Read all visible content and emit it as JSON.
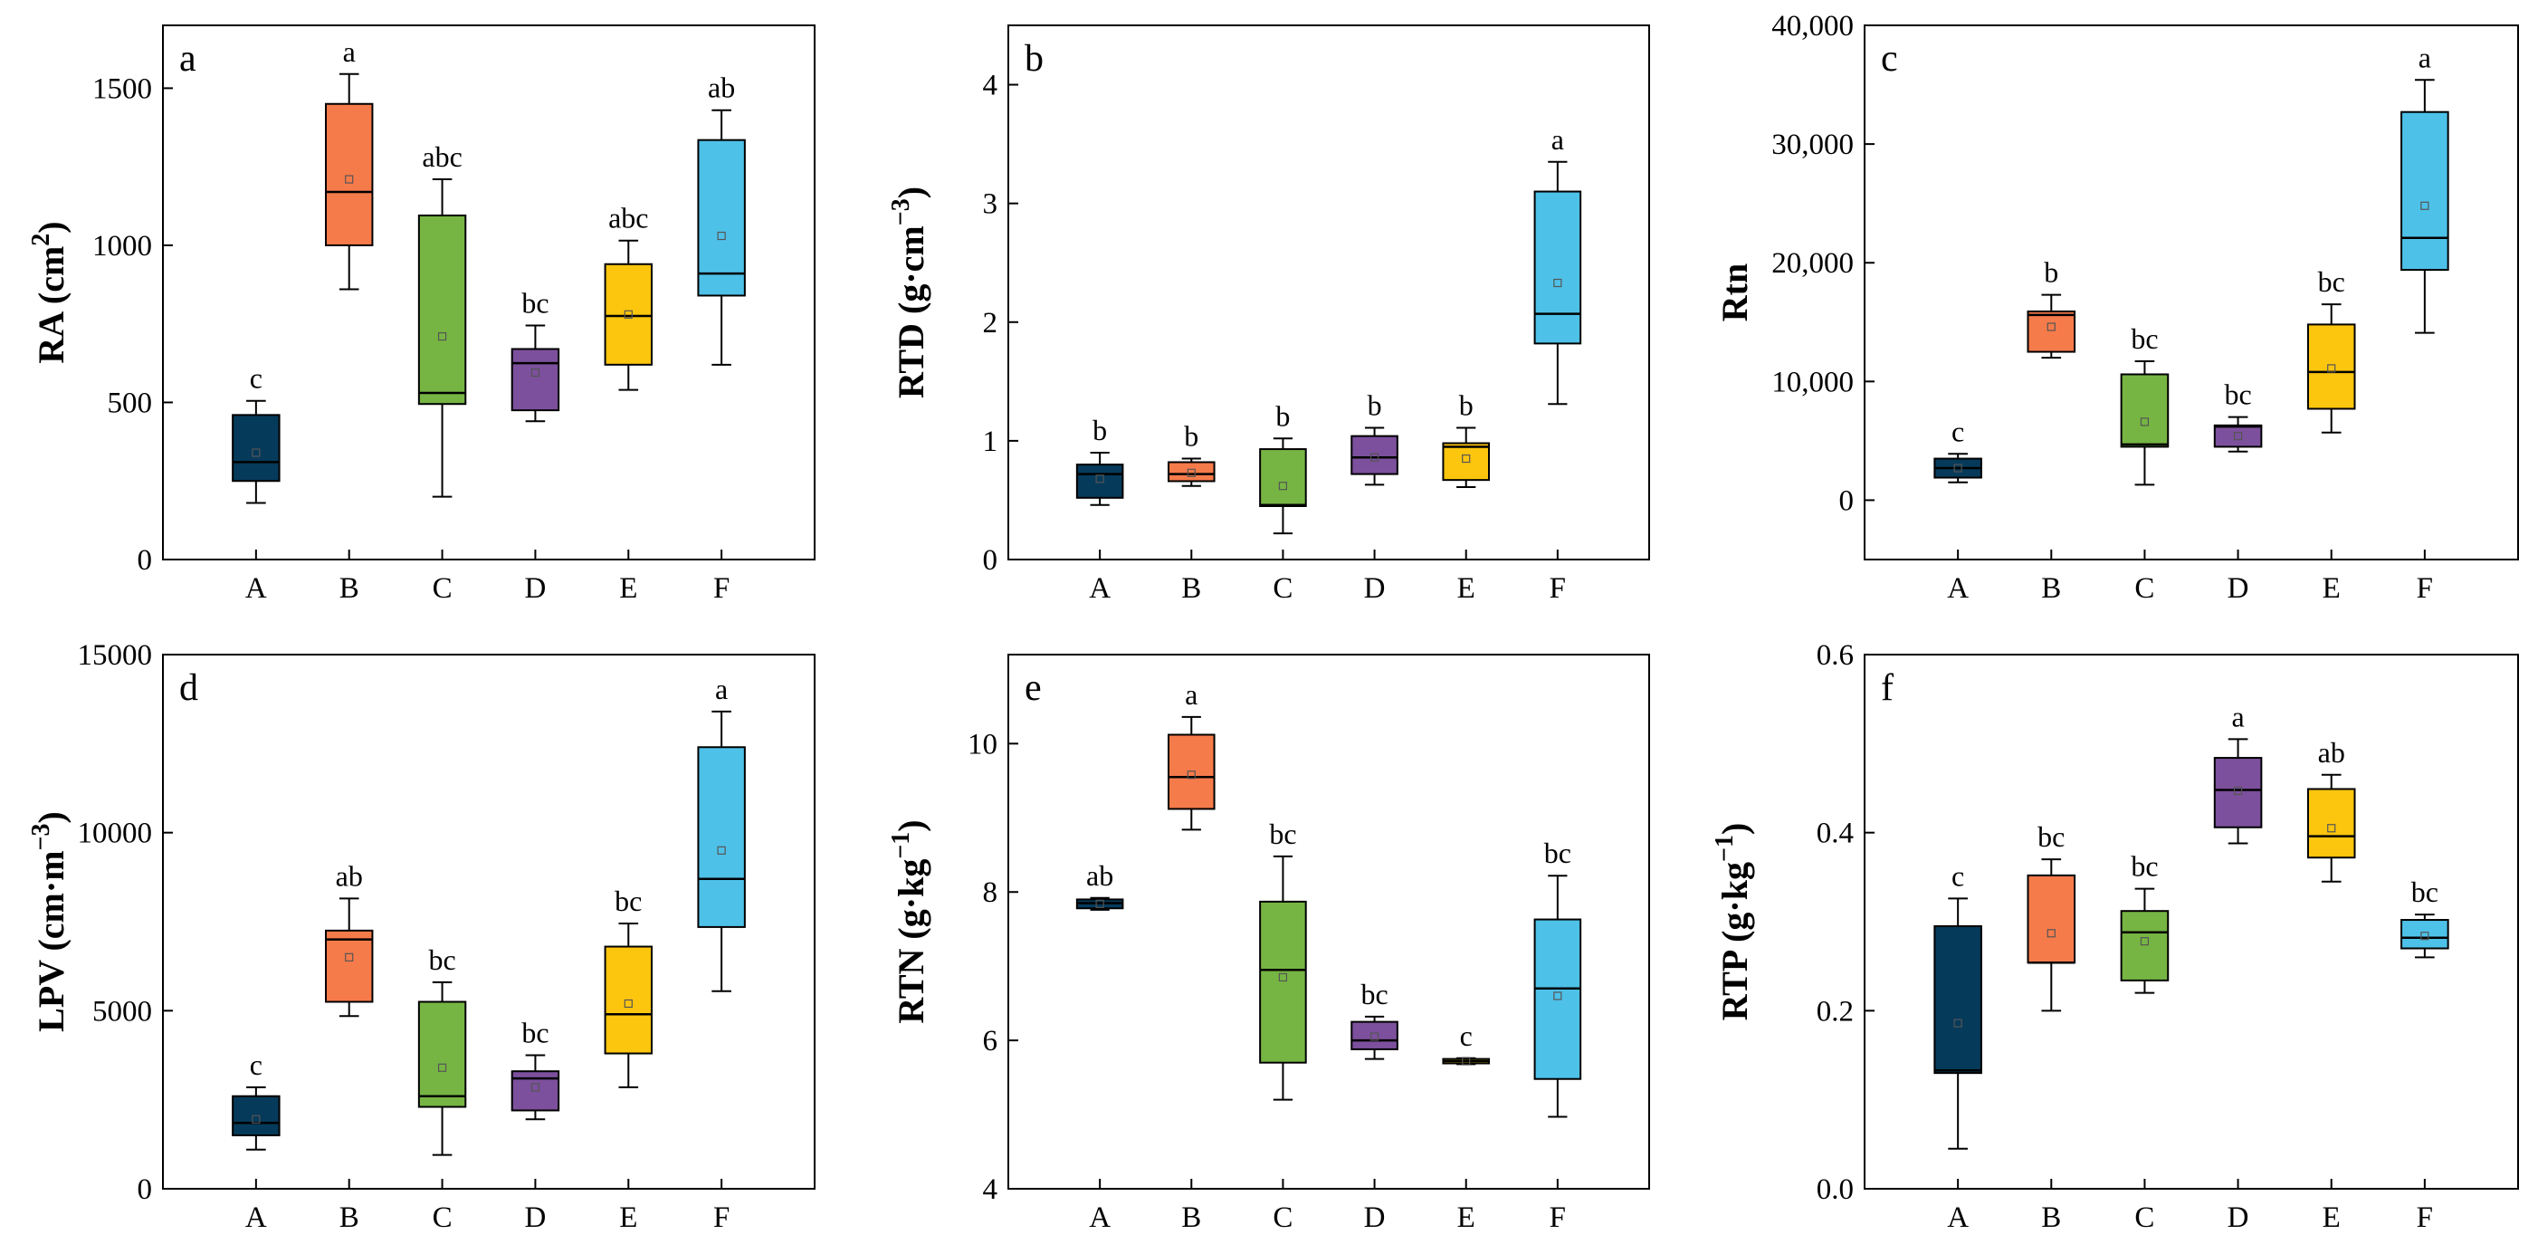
{
  "figure": {
    "colors": {
      "A": "#063a5a",
      "B": "#f67b4b",
      "C": "#76b543",
      "D": "#7c509c",
      "E": "#fcc50e",
      "F": "#4ec1e8"
    }
  },
  "chart_data": [
    {
      "type": "box",
      "panel": "a",
      "ylabel": {
        "main": "RA (cm",
        "sup": "2",
        "tail": ")"
      },
      "ylim": [
        0,
        1700
      ],
      "yticks": [
        0,
        500,
        1000,
        1500
      ],
      "ytick_labels": [
        "0",
        "500",
        "1000",
        "1500"
      ],
      "categories": [
        "A",
        "B",
        "C",
        "D",
        "E",
        "F"
      ],
      "boxes": [
        {
          "min": 180,
          "q1": 250,
          "median": 310,
          "q3": 460,
          "max": 505,
          "mean": 340,
          "label": "c"
        },
        {
          "min": 860,
          "q1": 1000,
          "median": 1170,
          "q3": 1450,
          "max": 1545,
          "mean": 1210,
          "label": "a"
        },
        {
          "min": 200,
          "q1": 495,
          "median": 530,
          "q3": 1095,
          "max": 1210,
          "mean": 710,
          "label": "abc"
        },
        {
          "min": 440,
          "q1": 475,
          "median": 625,
          "q3": 670,
          "max": 745,
          "mean": 595,
          "label": "bc"
        },
        {
          "min": 540,
          "q1": 620,
          "median": 775,
          "q3": 940,
          "max": 1015,
          "mean": 780,
          "label": "abc"
        },
        {
          "min": 620,
          "q1": 840,
          "median": 910,
          "q3": 1335,
          "max": 1430,
          "mean": 1030,
          "label": "ab"
        }
      ]
    },
    {
      "type": "box",
      "panel": "b",
      "ylabel": {
        "main": "RTD (g·cm",
        "sup": "−3",
        "tail": ")"
      },
      "ylim": [
        0,
        4.5
      ],
      "yticks": [
        0,
        1,
        2,
        3,
        4
      ],
      "ytick_labels": [
        "0",
        "1",
        "2",
        "3",
        "4"
      ],
      "categories": [
        "A",
        "B",
        "C",
        "D",
        "E",
        "F"
      ],
      "boxes": [
        {
          "min": 0.46,
          "q1": 0.52,
          "median": 0.72,
          "q3": 0.8,
          "max": 0.9,
          "mean": 0.68,
          "label": "b"
        },
        {
          "min": 0.62,
          "q1": 0.66,
          "median": 0.72,
          "q3": 0.82,
          "max": 0.85,
          "mean": 0.73,
          "label": "b"
        },
        {
          "min": 0.22,
          "q1": 0.45,
          "median": 0.46,
          "q3": 0.93,
          "max": 1.02,
          "mean": 0.62,
          "label": "b"
        },
        {
          "min": 0.63,
          "q1": 0.72,
          "median": 0.86,
          "q3": 1.04,
          "max": 1.11,
          "mean": 0.86,
          "label": "b"
        },
        {
          "min": 0.61,
          "q1": 0.67,
          "median": 0.95,
          "q3": 0.98,
          "max": 1.11,
          "mean": 0.85,
          "label": "b"
        },
        {
          "min": 1.31,
          "q1": 1.82,
          "median": 2.07,
          "q3": 3.1,
          "max": 3.35,
          "mean": 2.33,
          "label": "a"
        }
      ]
    },
    {
      "type": "box",
      "panel": "c",
      "ylabel": {
        "main": "Rtn",
        "sup": "",
        "tail": ""
      },
      "ylim": [
        -5000,
        40000
      ],
      "yticks": [
        0,
        10000,
        20000,
        30000,
        40000
      ],
      "ytick_labels": [
        "0",
        "10,000",
        "20,000",
        "30,000",
        "40,000"
      ],
      "categories": [
        "A",
        "B",
        "C",
        "D",
        "E",
        "F"
      ],
      "boxes": [
        {
          "min": 1500,
          "q1": 1900,
          "median": 2700,
          "q3": 3500,
          "max": 3900,
          "mean": 2700,
          "label": "c"
        },
        {
          "min": 12000,
          "q1": 12500,
          "median": 15600,
          "q3": 15900,
          "max": 17300,
          "mean": 14600,
          "label": "b"
        },
        {
          "min": 1300,
          "q1": 4500,
          "median": 4700,
          "q3": 10600,
          "max": 11700,
          "mean": 6600,
          "label": "bc"
        },
        {
          "min": 4100,
          "q1": 4500,
          "median": 6200,
          "q3": 6300,
          "max": 7000,
          "mean": 5400,
          "label": "bc"
        },
        {
          "min": 5700,
          "q1": 7700,
          "median": 10800,
          "q3": 14800,
          "max": 16500,
          "mean": 11100,
          "label": "bc"
        },
        {
          "min": 14100,
          "q1": 19400,
          "median": 22100,
          "q3": 32700,
          "max": 35400,
          "mean": 24800,
          "label": "a"
        }
      ]
    },
    {
      "type": "box",
      "panel": "d",
      "ylabel": {
        "main": "LPV (cm·m",
        "sup": "−3",
        "tail": ")"
      },
      "ylim": [
        0,
        15000
      ],
      "yticks": [
        0,
        5000,
        10000,
        15000
      ],
      "ytick_labels": [
        "0",
        "5000",
        "10000",
        "15000"
      ],
      "categories": [
        "A",
        "B",
        "C",
        "D",
        "E",
        "F"
      ],
      "boxes": [
        {
          "min": 1100,
          "q1": 1500,
          "median": 1850,
          "q3": 2600,
          "max": 2850,
          "mean": 1950,
          "label": "c"
        },
        {
          "min": 4850,
          "q1": 5250,
          "median": 7000,
          "q3": 7250,
          "max": 8150,
          "mean": 6500,
          "label": "ab"
        },
        {
          "min": 950,
          "q1": 2300,
          "median": 2600,
          "q3": 5250,
          "max": 5800,
          "mean": 3400,
          "label": "bc"
        },
        {
          "min": 1950,
          "q1": 2200,
          "median": 3100,
          "q3": 3300,
          "max": 3750,
          "mean": 2850,
          "label": "bc"
        },
        {
          "min": 2850,
          "q1": 3800,
          "median": 4900,
          "q3": 6800,
          "max": 7450,
          "mean": 5200,
          "label": "bc"
        },
        {
          "min": 5550,
          "q1": 7350,
          "median": 8700,
          "q3": 12400,
          "max": 13400,
          "mean": 9500,
          "label": "a"
        }
      ]
    },
    {
      "type": "box",
      "panel": "e",
      "ylabel": {
        "main": "RTN (g·kg",
        "sup": "−1",
        "tail": ")"
      },
      "ylim": [
        4,
        11.2
      ],
      "yticks": [
        4,
        6,
        8,
        10
      ],
      "ytick_labels": [
        "4",
        "6",
        "8",
        "10"
      ],
      "categories": [
        "A",
        "B",
        "C",
        "D",
        "E",
        "F"
      ],
      "boxes": [
        {
          "min": 7.76,
          "q1": 7.78,
          "median": 7.85,
          "q3": 7.9,
          "max": 7.92,
          "mean": 7.84,
          "label": "ab"
        },
        {
          "min": 8.84,
          "q1": 9.12,
          "median": 9.55,
          "q3": 10.12,
          "max": 10.36,
          "mean": 9.58,
          "label": "a"
        },
        {
          "min": 5.2,
          "q1": 5.7,
          "median": 6.95,
          "q3": 7.87,
          "max": 8.48,
          "mean": 6.85,
          "label": "bc"
        },
        {
          "min": 5.75,
          "q1": 5.88,
          "median": 6.0,
          "q3": 6.25,
          "max": 6.32,
          "mean": 6.05,
          "label": "bc"
        },
        {
          "min": 5.68,
          "q1": 5.69,
          "median": 5.72,
          "q3": 5.75,
          "max": 5.76,
          "mean": 5.72,
          "label": "c"
        },
        {
          "min": 4.97,
          "q1": 5.48,
          "median": 6.7,
          "q3": 7.63,
          "max": 8.22,
          "mean": 6.6,
          "label": "bc"
        }
      ]
    },
    {
      "type": "box",
      "panel": "f",
      "ylabel": {
        "main": "RTP (g·kg",
        "sup": "−1",
        "tail": ")"
      },
      "ylim": [
        0,
        0.6
      ],
      "yticks": [
        0,
        0.2,
        0.4,
        0.6
      ],
      "ytick_labels": [
        "0.0",
        "0.2",
        "0.4",
        "0.6"
      ],
      "categories": [
        "A",
        "B",
        "C",
        "D",
        "E",
        "F"
      ],
      "boxes": [
        {
          "min": 0.045,
          "q1": 0.13,
          "median": 0.133,
          "q3": 0.295,
          "max": 0.326,
          "mean": 0.186,
          "label": "c"
        },
        {
          "min": 0.2,
          "q1": 0.254,
          "median": 0.254,
          "q3": 0.352,
          "max": 0.37,
          "mean": 0.287,
          "label": "bc"
        },
        {
          "min": 0.22,
          "q1": 0.234,
          "median": 0.288,
          "q3": 0.312,
          "max": 0.337,
          "mean": 0.278,
          "label": "bc"
        },
        {
          "min": 0.388,
          "q1": 0.406,
          "median": 0.448,
          "q3": 0.484,
          "max": 0.505,
          "mean": 0.447,
          "label": "a"
        },
        {
          "min": 0.345,
          "q1": 0.372,
          "median": 0.396,
          "q3": 0.449,
          "max": 0.465,
          "mean": 0.405,
          "label": "ab"
        },
        {
          "min": 0.26,
          "q1": 0.27,
          "median": 0.282,
          "q3": 0.302,
          "max": 0.308,
          "mean": 0.284,
          "label": "bc"
        }
      ]
    }
  ]
}
